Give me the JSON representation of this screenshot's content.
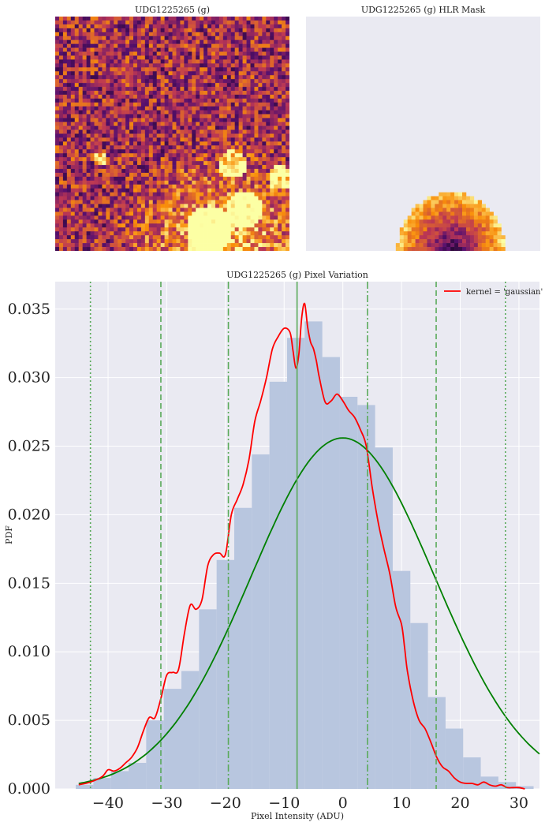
{
  "panels": {
    "left_title": "UDG1225265 (g)",
    "right_title": "UDG1225265 (g) HLR Mask"
  },
  "colors": {
    "background": "#eaeaf2",
    "grid": "#ffffff",
    "hist_fill": "#b8c6df",
    "kde_line": "#ff0000",
    "gauss_line": "#008000",
    "vlines": "#5aaa5a"
  },
  "chart_data": {
    "type": "bar",
    "title": "UDG1225265 (g) Pixel Variation",
    "xlabel": "Pixel Intensity (ADU)",
    "ylabel": "PDF",
    "xlim": [
      -49,
      33.5
    ],
    "ylim": [
      0,
      0.037
    ],
    "xticks": [
      -40,
      -30,
      -20,
      -10,
      0,
      10,
      20,
      30
    ],
    "yticks": [
      0.0,
      0.005,
      0.01,
      0.015,
      0.02,
      0.025,
      0.03,
      0.035
    ],
    "xtick_labels": [
      "−40",
      "−30",
      "−20",
      "−10",
      "0",
      "10",
      "20",
      "30"
    ],
    "ytick_labels": [
      "0.000",
      "0.005",
      "0.010",
      "0.015",
      "0.020",
      "0.025",
      "0.030",
      "0.035"
    ],
    "grid": true,
    "legend": {
      "entries": [
        {
          "label": "kernel = 'gaussian'",
          "color": "#ff0000"
        }
      ],
      "loc": "top-right"
    },
    "histogram": {
      "bin_edges": [
        -45.5,
        -42.5,
        -39.5,
        -36.5,
        -33.5,
        -30.5,
        -27.5,
        -24.5,
        -21.5,
        -18.5,
        -15.5,
        -12.5,
        -9.5,
        -6.5,
        -3.5,
        -0.5,
        2.5,
        5.5,
        8.5,
        11.5,
        14.5,
        17.5,
        20.5,
        23.5,
        26.5,
        29.5,
        32.5
      ],
      "values": [
        0.0003,
        0.0008,
        0.0013,
        0.0019,
        0.005,
        0.0073,
        0.0086,
        0.0131,
        0.0167,
        0.0205,
        0.0244,
        0.0297,
        0.0329,
        0.0341,
        0.0315,
        0.0286,
        0.028,
        0.0249,
        0.0159,
        0.0121,
        0.0067,
        0.0044,
        0.0023,
        0.0009,
        0.0005,
        0.0002
      ]
    },
    "series": [
      {
        "name": "kernel = 'gaussian'",
        "x": [
          -45,
          -43,
          -41,
          -40,
          -39,
          -38,
          -37,
          -36,
          -35,
          -34,
          -33,
          -32,
          -31,
          -30,
          -29,
          -28,
          -27,
          -26,
          -25,
          -24,
          -23,
          -22,
          -21,
          -20,
          -19,
          -18,
          -17,
          -16,
          -15,
          -14,
          -13,
          -12,
          -11,
          -10,
          -9,
          -8.5,
          -8,
          -7.5,
          -7,
          -6.5,
          -6,
          -5.5,
          -5,
          -4.5,
          -4,
          -3,
          -2,
          -1,
          0,
          1,
          2,
          3,
          4,
          5,
          6,
          7,
          8,
          9,
          10,
          10.5,
          11,
          12,
          13,
          14,
          15,
          16,
          17,
          18,
          19,
          20,
          21,
          22,
          23,
          24,
          25,
          26,
          27,
          28,
          29,
          30,
          31
        ],
        "y": [
          0.0003,
          0.0005,
          0.0009,
          0.0014,
          0.0013,
          0.0015,
          0.0019,
          0.0023,
          0.003,
          0.0042,
          0.0052,
          0.0052,
          0.0066,
          0.0083,
          0.0085,
          0.0087,
          0.0113,
          0.0134,
          0.0131,
          0.0138,
          0.0163,
          0.0171,
          0.0172,
          0.0171,
          0.02,
          0.0211,
          0.0222,
          0.024,
          0.0268,
          0.0283,
          0.03,
          0.0321,
          0.033,
          0.0336,
          0.0333,
          0.032,
          0.0307,
          0.0317,
          0.0344,
          0.0354,
          0.0337,
          0.0326,
          0.0321,
          0.0312,
          0.03,
          0.0282,
          0.0283,
          0.0288,
          0.0283,
          0.0276,
          0.0271,
          0.0262,
          0.025,
          0.022,
          0.0195,
          0.0175,
          0.0157,
          0.0133,
          0.012,
          0.0104,
          0.0086,
          0.0064,
          0.005,
          0.0044,
          0.0034,
          0.0023,
          0.0016,
          0.0013,
          0.0008,
          0.0005,
          0.0004,
          0.0004,
          0.0003,
          0.0005,
          0.0003,
          0.0002,
          0.0003,
          0.0001,
          0.0001,
          0.0001,
          0.0
        ]
      },
      {
        "name": "",
        "type": "gaussian",
        "mean": 0,
        "std": 15.6,
        "peak": 0.0256,
        "x_range": [
          -45,
          33.5
        ]
      }
    ],
    "vlines": [
      {
        "x": -43,
        "style": "dotted"
      },
      {
        "x": -31,
        "style": "dashed"
      },
      {
        "x": -19.5,
        "style": "dashdot"
      },
      {
        "x": -7.8,
        "style": "solid"
      },
      {
        "x": 4.2,
        "style": "dashdot"
      },
      {
        "x": 15.9,
        "style": "dashed"
      },
      {
        "x": 27.7,
        "style": "dotted"
      }
    ]
  }
}
